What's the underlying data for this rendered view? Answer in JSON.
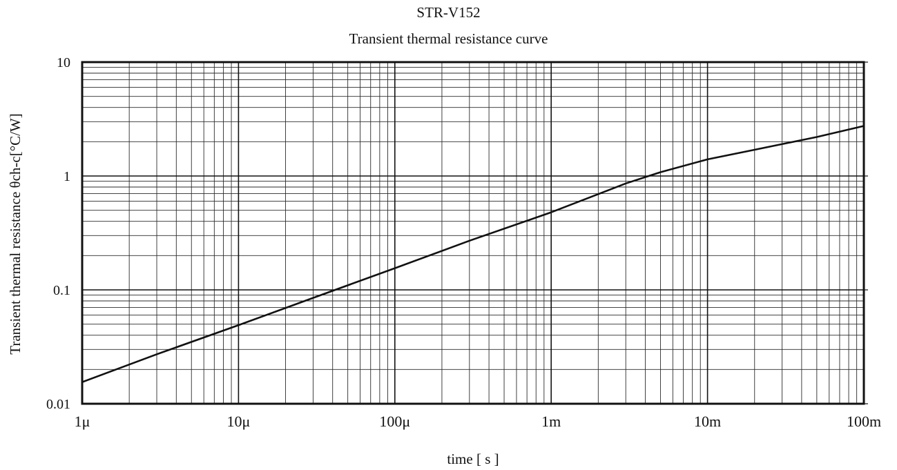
{
  "chart_data": {
    "type": "line",
    "title": "STR-V152",
    "subtitle": "Transient thermal resistance curve",
    "xlabel": "time [ s ]",
    "ylabel": "Transient thermal resistance θch-c[°C/W]",
    "x_scale": "log",
    "y_scale": "log",
    "xlim": [
      1e-06,
      0.1
    ],
    "ylim": [
      0.01,
      10
    ],
    "x_ticks": [
      {
        "value": 1e-06,
        "label": "1μ"
      },
      {
        "value": 1e-05,
        "label": "10μ"
      },
      {
        "value": 0.0001,
        "label": "100μ"
      },
      {
        "value": 0.001,
        "label": "1m"
      },
      {
        "value": 0.01,
        "label": "10m"
      },
      {
        "value": 0.1,
        "label": "100m"
      }
    ],
    "y_ticks": [
      {
        "value": 0.01,
        "label": "0.01"
      },
      {
        "value": 0.1,
        "label": "0.1"
      },
      {
        "value": 1,
        "label": "1"
      },
      {
        "value": 10,
        "label": "10"
      }
    ],
    "grid": true,
    "legend": "none",
    "line_color": "#111111",
    "series": [
      {
        "x": [
          1e-06,
          3e-06,
          1e-05,
          3e-05,
          0.0001,
          0.0003,
          0.001,
          0.003,
          0.005,
          0.01,
          0.02,
          0.05,
          0.1
        ],
        "y": [
          0.0155,
          0.0272,
          0.049,
          0.085,
          0.155,
          0.27,
          0.48,
          0.86,
          1.08,
          1.4,
          1.7,
          2.2,
          2.75
        ]
      }
    ]
  }
}
